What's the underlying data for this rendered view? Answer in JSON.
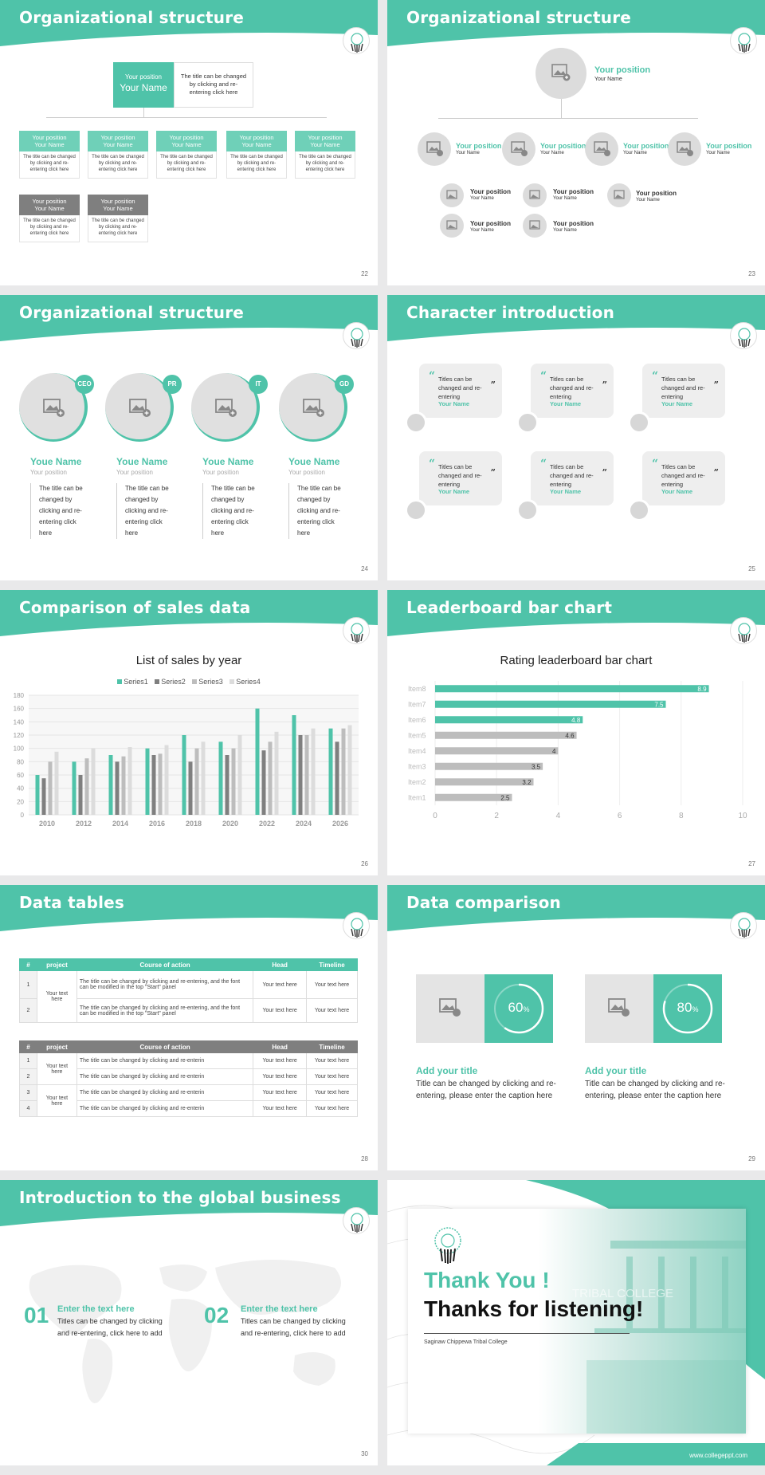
{
  "slides": [
    {
      "title": "Organizational structure",
      "page": "22"
    },
    {
      "title": "Organizational structure",
      "page": "23"
    },
    {
      "title": "Organizational structure",
      "page": "24"
    },
    {
      "title": "Character introduction",
      "page": "25"
    },
    {
      "title": "Comparison of sales data",
      "page": "26"
    },
    {
      "title": "Leaderboard bar chart",
      "page": "27"
    },
    {
      "title": "Data tables",
      "page": "28"
    },
    {
      "title": "Data comparison",
      "page": "29"
    },
    {
      "title": "Introduction to the global business",
      "page": "30"
    }
  ],
  "theme": {
    "accent": "#4fc3a9",
    "grey": "#7f7f7f",
    "light": "#e0e0e0"
  },
  "org": {
    "top_position": "Your position",
    "top_name": "Your Name",
    "top_desc": "The title can be changed by clicking and re-entering click here",
    "card_position": "Your position",
    "card_name": "Your Name",
    "card_desc": "The title can be changed by clicking and re-entering click here"
  },
  "org2": {
    "main_position": "Your position",
    "main_name": "Your Name",
    "position": "Your position",
    "name": "Your Name"
  },
  "team": {
    "members": [
      {
        "badge": "CEO",
        "name": "Youe Name",
        "position": "Your position",
        "desc": "The title can be changed by clicking and re-entering click here"
      },
      {
        "badge": "PR",
        "name": "Youe Name",
        "position": "Your position",
        "desc": "The title can be changed by clicking and re-entering click here"
      },
      {
        "badge": "IT",
        "name": "Youe Name",
        "position": "Your position",
        "desc": "The title can be changed by clicking and re-entering click here"
      },
      {
        "badge": "GD",
        "name": "Youe Name",
        "position": "Your position",
        "desc": "The title can be changed by clicking and re-entering click here"
      }
    ]
  },
  "characters": {
    "quote_open": "“",
    "quote_close": "”",
    "text": "Titles can be changed and re-entering",
    "name": "Your Name"
  },
  "chart_data": [
    {
      "type": "bar",
      "title": "List of sales by year",
      "categories": [
        "2010",
        "2012",
        "2014",
        "2016",
        "2018",
        "2020",
        "2022",
        "2024",
        "2026"
      ],
      "series": [
        {
          "name": "Series1",
          "color": "#4fc3a9",
          "values": [
            60,
            80,
            90,
            100,
            120,
            110,
            160,
            150,
            130
          ]
        },
        {
          "name": "Series2",
          "color": "#7f7f7f",
          "values": [
            55,
            60,
            80,
            90,
            80,
            90,
            97,
            120,
            110
          ]
        },
        {
          "name": "Series3",
          "color": "#bdbdbd",
          "values": [
            80,
            85,
            88,
            92,
            100,
            100,
            110,
            120,
            130
          ]
        },
        {
          "name": "Series4",
          "color": "#dcdcdc",
          "values": [
            95,
            100,
            102,
            105,
            110,
            120,
            125,
            130,
            135
          ]
        }
      ],
      "ylim": [
        0,
        180
      ],
      "yticks": [
        "0",
        "20",
        "40",
        "60",
        "80",
        "100",
        "120",
        "140",
        "160",
        "180"
      ],
      "legend": "top",
      "grid": true
    },
    {
      "type": "bar",
      "orientation": "horizontal",
      "title": "Rating leaderboard bar chart",
      "categories": [
        "Item8",
        "Item7",
        "Item6",
        "Item5",
        "Item4",
        "Item3",
        "Item2",
        "Item1"
      ],
      "values": [
        8.9,
        7.5,
        4.8,
        4.6,
        4,
        3.5,
        3.2,
        2.5
      ],
      "labels": [
        "8.9",
        "7.5",
        "4.8",
        "4.6",
        "4",
        "3.5",
        "3.2",
        "2.5"
      ],
      "highlight_count": 3,
      "xlim": [
        0,
        10
      ],
      "xticks": [
        "0",
        "2",
        "4",
        "6",
        "8",
        "10"
      ],
      "grid": true
    }
  ],
  "tables": {
    "headers": [
      "#",
      "project",
      "Course of action",
      "Head",
      "Timeline"
    ],
    "t1": {
      "rows": [
        {
          "num": "1",
          "action": "The title can be changed by clicking and re-entering, and the font can be modified in the top \"Start\" panel",
          "head": "Your text here",
          "time": "Your text here"
        },
        {
          "num": "2",
          "action": "The title can be changed by clicking and re-entering, and the font can be modified in the top \"Start\" panel",
          "head": "Your text here",
          "time": "Your text here"
        }
      ],
      "project": "Your text here"
    },
    "t2": {
      "rows": [
        {
          "num": "1",
          "action": "The title can be changed by clicking and re-enterin",
          "head": "Your text here",
          "time": "Your text here"
        },
        {
          "num": "2",
          "action": "The title can be changed by clicking and re-enterin",
          "head": "Your text here",
          "time": "Your text here"
        },
        {
          "num": "3",
          "action": "The title can be changed by clicking and re-enterin",
          "head": "Your text here",
          "time": "Your text here"
        },
        {
          "num": "4",
          "action": "The title can be changed by clicking and re-enterin",
          "head": "Your text here",
          "time": "Your text here"
        }
      ],
      "project_a": "Your text here",
      "project_b": "Your text here"
    }
  },
  "comparison": {
    "items": [
      {
        "pct": "60",
        "pct_value": 60,
        "title": "Add your title",
        "desc": "Title can be changed by clicking and re-entering, please enter the caption here"
      },
      {
        "pct": "80",
        "pct_value": 80,
        "title": "Add your title",
        "desc": "Title can be changed by clicking and re-entering, please enter the caption here"
      }
    ],
    "unit": "%"
  },
  "global": {
    "items": [
      {
        "num": "01",
        "title": "Enter the text here",
        "desc": "Titles can be changed by clicking and re-entering, click here to add"
      },
      {
        "num": "02",
        "title": "Enter the text here",
        "desc": "Titles can be changed by clicking and re-entering, click here to add"
      }
    ]
  },
  "closing": {
    "line1": "Thank You !",
    "line2": "Thanks for listening!",
    "college": "Saginaw Chippewa Tribal College",
    "building_sign": "TRIBAL COLLEGE",
    "website": "www.collegeppt.com"
  }
}
